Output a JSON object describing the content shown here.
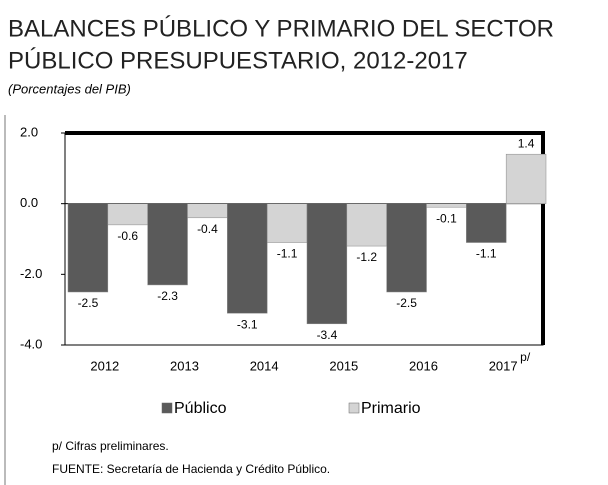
{
  "chart_data": {
    "type": "bar",
    "title_lines": [
      "BALANCES PÚBLICO Y PRIMARIO DEL SECTOR",
      "PÚBLICO PRESUPUESTARIO, 2012-2017"
    ],
    "subtitle": "(Porcentajes del PIB)",
    "categories": [
      "2012",
      "2013",
      "2014",
      "2015",
      "2016",
      "2017"
    ],
    "category_note": "p/",
    "series": [
      {
        "name": "Público",
        "color": "#5a5a5a",
        "values": [
          -2.5,
          -2.3,
          -3.1,
          -3.4,
          -2.5,
          -1.1
        ]
      },
      {
        "name": "Primario",
        "color": "#d4d4d4",
        "values": [
          -0.6,
          -0.4,
          -1.1,
          -1.2,
          -0.1,
          1.4
        ]
      }
    ],
    "ylim": [
      -4,
      2
    ],
    "yticks": [
      {
        "value": 2,
        "label": "2.0"
      },
      {
        "value": 0,
        "label": "0.0"
      },
      {
        "value": -2,
        "label": "-2.0"
      },
      {
        "value": -4,
        "label": "-4.0"
      }
    ],
    "footnotes": [
      "p/ Cifras preliminares.",
      "FUENTE: Secretaría de Hacienda  y Crédito Público."
    ]
  }
}
